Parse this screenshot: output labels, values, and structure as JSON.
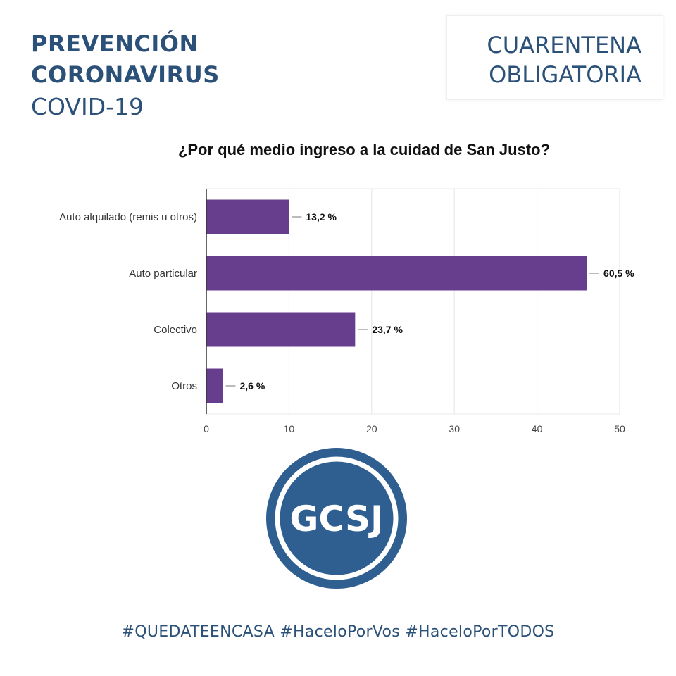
{
  "header": {
    "line1": "PREVENCIÓN",
    "line2": "CORONAVIRUS",
    "line3": "COVID-19",
    "box_line1": "CUARENTENA",
    "box_line2": "OBLIGATORIA"
  },
  "logo": {
    "text": "GCSJ"
  },
  "footer": {
    "hashtags": "#QUEDATEENCASA #HaceloPorVos #HaceloPorTODOS"
  },
  "colors": {
    "brand": "#2b5178",
    "bar": "#673d8e"
  },
  "chart_data": {
    "type": "bar",
    "orientation": "horizontal",
    "title": "¿Por qué medio ingreso a la cuidad de San Justo?",
    "categories": [
      "Auto alquilado (remis u otros)",
      "Auto particular",
      "Colectivo",
      "Otros"
    ],
    "values": [
      10,
      46,
      18,
      2
    ],
    "data_labels": [
      "13,2 %",
      "60,5 %",
      "23,7 %",
      "2,6 %"
    ],
    "xlim": [
      0,
      50
    ],
    "xticks": [
      0,
      10,
      20,
      30,
      40,
      50
    ],
    "grid": true,
    "legend": "none"
  }
}
